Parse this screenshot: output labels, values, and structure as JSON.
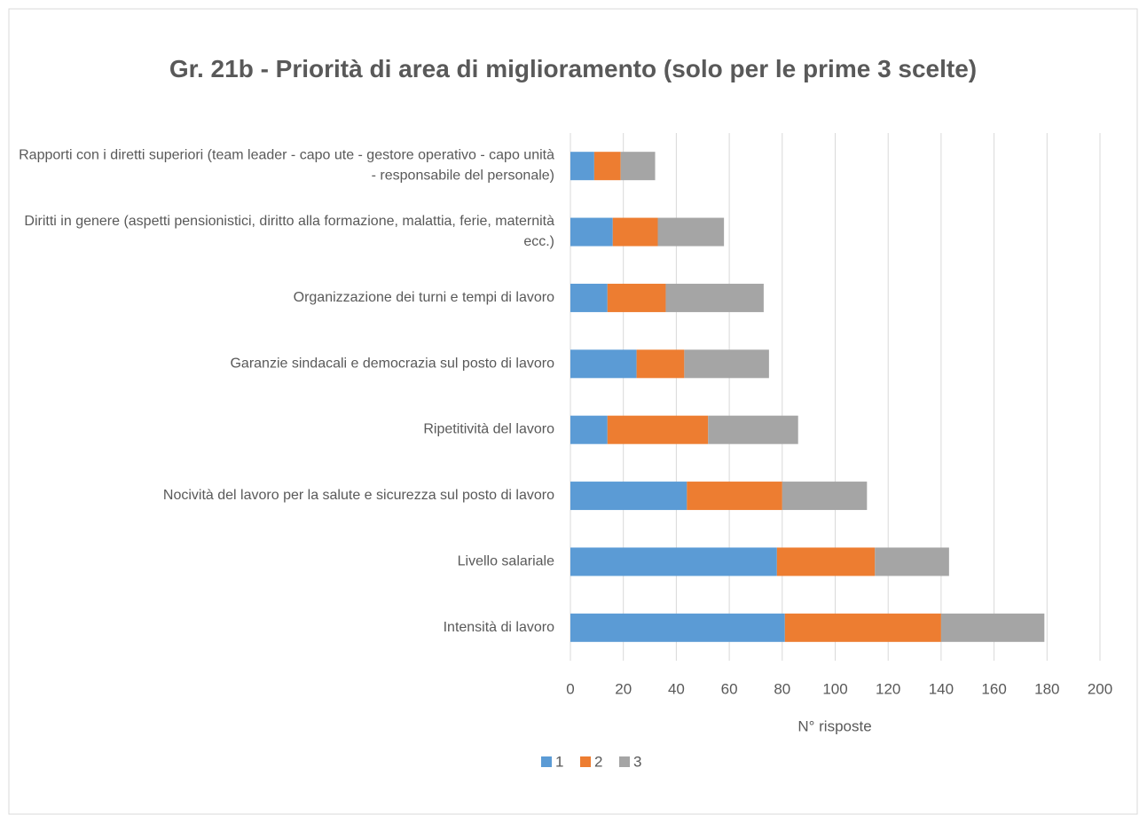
{
  "chart_data": {
    "type": "stacked-barh",
    "title": "Gr. 21b - Priorità di area di miglioramento (solo per le prime 3 scelte)",
    "categories": [
      "Rapporti con i diretti superiori (team leader - capo ute - gestore operativo - capo unità - responsabile del personale)",
      "Diritti in genere (aspetti pensionistici, diritto alla formazione, malattia, ferie, maternità ecc.)",
      "Organizzazione dei turni e tempi di lavoro",
      "Garanzie sindacali e democrazia sul posto di lavoro",
      "Ripetitività del lavoro",
      "Nocività del lavoro per la salute e sicurezza sul posto di lavoro",
      "Livello salariale",
      "Intensità di lavoro"
    ],
    "series": [
      {
        "name": "1",
        "color": "#5b9bd5",
        "values": [
          9,
          16,
          14,
          25,
          14,
          44,
          78,
          81
        ]
      },
      {
        "name": "2",
        "color": "#ed7d31",
        "values": [
          10,
          17,
          22,
          18,
          38,
          36,
          37,
          59
        ]
      },
      {
        "name": "3",
        "color": "#a5a5a5",
        "values": [
          13,
          25,
          37,
          32,
          34,
          32,
          28,
          39
        ]
      }
    ],
    "xlabel": "N° risposte",
    "xlim": [
      0,
      200
    ],
    "xticks": [
      0,
      20,
      40,
      60,
      80,
      100,
      120,
      140,
      160,
      180,
      200
    ],
    "grid": true,
    "legend": "bottom"
  }
}
